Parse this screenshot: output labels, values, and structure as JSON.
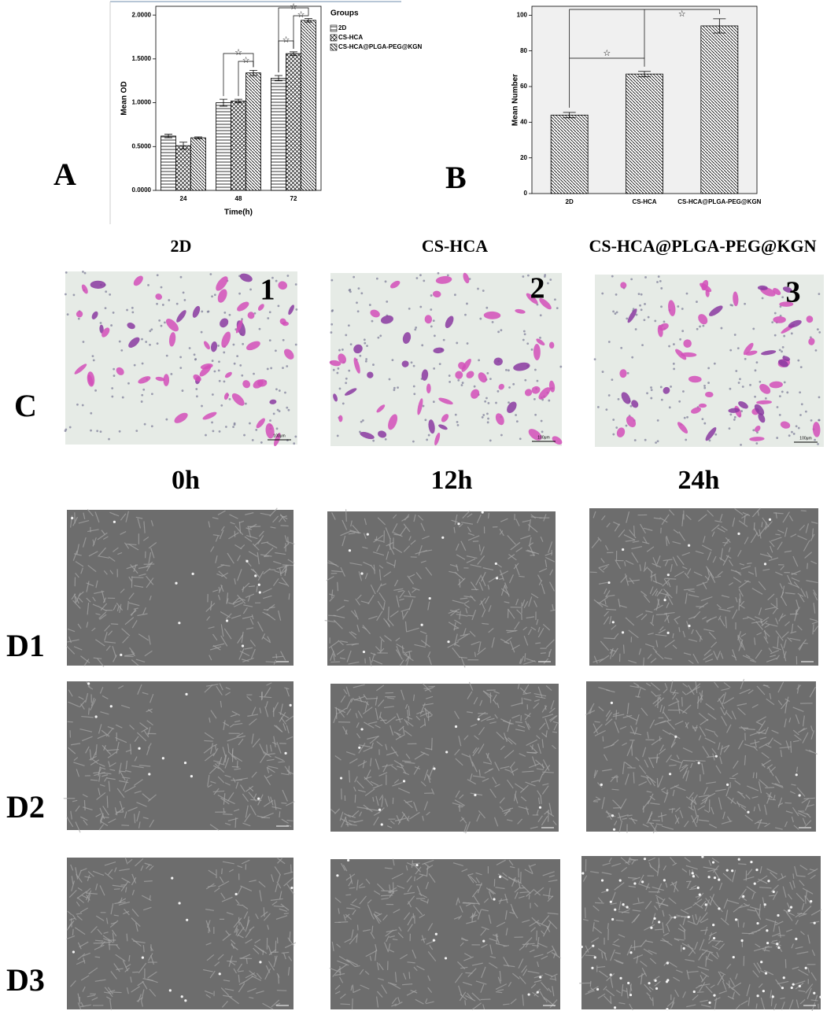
{
  "chart_data": [
    {
      "type": "bar",
      "x_label": "Time(h)",
      "y_label": "Mean OD",
      "legend_title": "Groups",
      "categories": [
        "24",
        "48",
        "72"
      ],
      "series": [
        {
          "name": "2D",
          "color": "#000000",
          "pattern": "horizontal",
          "values": [
            0.62,
            1.0,
            1.28
          ],
          "errors": [
            0.02,
            0.04,
            0.03
          ]
        },
        {
          "name": "CS-HCA",
          "color": "#000000",
          "pattern": "crosshatch",
          "values": [
            0.51,
            1.02,
            1.56
          ],
          "errors": [
            0.04,
            0.02,
            0.02
          ]
        },
        {
          "name": "CS-HCA@PLGA-PEG@KGN",
          "color": "#000000",
          "pattern": "diagonal",
          "values": [
            0.6,
            1.34,
            1.94
          ],
          "errors": [
            0.01,
            0.03,
            0.02
          ]
        }
      ],
      "ylim": [
        0,
        2.1
      ],
      "yticks": [
        {
          "value": 0,
          "label": "0.0000"
        },
        {
          "value": 0.5,
          "label": "0.5000"
        },
        {
          "value": 1,
          "label": "1.0000"
        },
        {
          "value": 1.5,
          "label": "1.5000"
        },
        {
          "value": 2,
          "label": "2.0000"
        }
      ],
      "significance_marker": "☆"
    },
    {
      "type": "bar",
      "y_label": "Mean Number",
      "background": "#f0f0f0",
      "categories": [
        "2D",
        "CS-HCA",
        "CS-HCA@PLGA-PEG@KGN"
      ],
      "series": [
        {
          "color": "#000000",
          "pattern": "diagonal",
          "values": [
            44,
            67,
            94
          ],
          "errors": [
            1.5,
            1.5,
            4
          ]
        }
      ],
      "ylim": [
        0,
        105
      ],
      "yticks": [
        0,
        20,
        40,
        60,
        80,
        100
      ],
      "significance_marker": "☆"
    }
  ],
  "panel_labels": [
    "A",
    "B",
    "C"
  ],
  "panel_c": {
    "columns": [
      "2D",
      "CS-HCA",
      "CS-HCA@PLGA-PEG@KGN"
    ],
    "image_numbers": [
      "1",
      "2",
      "3"
    ],
    "scale_bar": "100μm"
  },
  "panel_d": {
    "columns": [
      "0h",
      "12h",
      "24h"
    ],
    "rows": [
      "D1",
      "D2",
      "D3"
    ]
  }
}
